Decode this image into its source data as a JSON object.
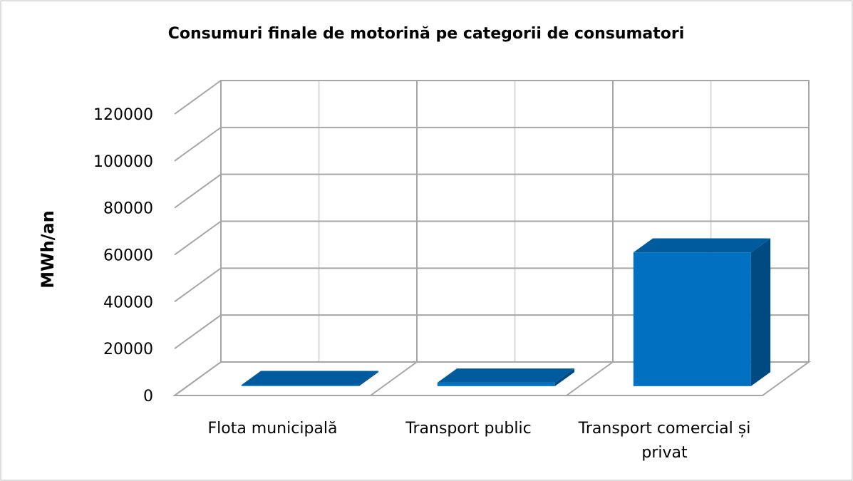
{
  "chart_data": {
    "type": "bar3d",
    "title": "Consumuri finale de motorină pe categorii de consumatori",
    "ylabel": "MWh/an",
    "categories": [
      "Flota municipală",
      "Transport public",
      "Transport comercial și privat"
    ],
    "values": [
      500,
      1500,
      57000
    ],
    "color": "#0070c0",
    "ylim": [
      0,
      120000
    ],
    "yticks": [
      0,
      20000,
      40000,
      60000,
      80000,
      100000,
      120000
    ],
    "grid": true
  }
}
